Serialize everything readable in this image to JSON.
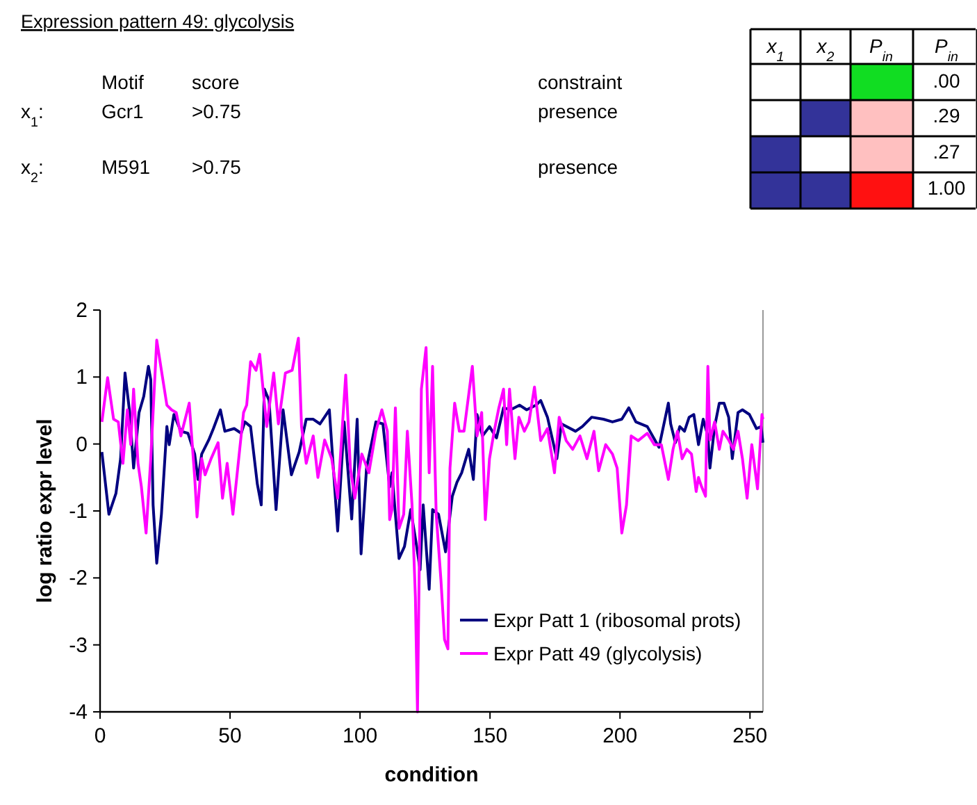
{
  "chart_data": [
    {
      "type": "other",
      "title": "Expression pattern 49: glycolysis",
      "annotations": [
        "Motif",
        "score",
        "constraint",
        "x$_{1}$:",
        "Gcr1",
        ">0.75",
        "presence",
        "x$_{2}$:",
        "M591",
        ">0.75",
        "presence",
        "x$_{1}$",
        "x$_{2}$",
        "P$_{in}$",
        "P$_{in}$",
        ".00",
        ".29",
        ".27",
        "1.00"
      ]
    },
    {
      "type": "line",
      "xlabel": "condition",
      "ylabel": "log ratio expr level",
      "xlim": [
        0,
        255
      ],
      "xticks": [
        0,
        50,
        100,
        150,
        200,
        250
      ],
      "ylim": [
        -4,
        2
      ],
      "yticks": [
        -4,
        -3,
        -2,
        -1,
        0,
        1,
        2
      ],
      "legend": "bottom right",
      "grid": false,
      "line_style": "solid",
      "series": [
        {
          "name": "Expr Patt 1 (ribosomal prots)",
          "color": "#000080",
          "x": [
            0.7,
            3.4,
            6.1,
            7.9,
            9.6,
            11.4,
            12.9,
            15.0,
            16.8,
            18.6,
            19.5,
            20.4,
            21.8,
            23.6,
            25.7,
            26.6,
            28.4,
            31.1,
            33.8,
            36.4,
            37.7,
            39.1,
            41.8,
            43.6,
            46.3,
            48.0,
            51.6,
            54.3,
            55.7,
            57.9,
            60.5,
            62.0,
            63.2,
            65.0,
            67.7,
            70.4,
            73.6,
            76.6,
            79.3,
            82.0,
            84.6,
            88.2,
            91.4,
            93.9,
            96.8,
            98.9,
            100.4,
            102.5,
            106.1,
            108.8,
            111.4,
            112.3,
            115.0,
            117.1,
            119.5,
            121.8,
            123.1,
            124.3,
            126.6,
            127.9,
            130.2,
            132.9,
            135.5,
            137.3,
            139.1,
            141.8,
            143.6,
            145.0,
            147.1,
            149.8,
            152.5,
            155.2,
            157.9,
            161.4,
            164.1,
            167.7,
            169.5,
            172.1,
            175.7,
            177.5,
            182.9,
            185.5,
            189.1,
            193.6,
            197.1,
            200.7,
            203.4,
            206.1,
            210.5,
            215.0,
            218.6,
            219.5,
            221.3,
            223.0,
            224.8,
            226.6,
            228.4,
            230.2,
            232.0,
            233.8,
            234.6,
            236.4,
            238.2,
            240.0,
            241.8,
            243.2,
            245.4,
            247.1,
            249.8,
            252.5,
            254.3,
            255.0
          ],
          "values": [
            -0.12,
            -1.05,
            -0.74,
            -0.22,
            1.06,
            0.47,
            -0.36,
            0.47,
            0.71,
            1.16,
            0.96,
            -0.91,
            -1.78,
            -1.05,
            0.26,
            -0.01,
            0.44,
            0.19,
            0.16,
            -0.15,
            -0.53,
            -0.15,
            0.06,
            0.23,
            0.51,
            0.19,
            0.23,
            0.16,
            0.33,
            0.26,
            -0.6,
            -0.91,
            0.82,
            0.65,
            -0.98,
            0.51,
            -0.46,
            -0.12,
            0.37,
            0.37,
            0.3,
            0.51,
            -1.3,
            0.33,
            -1.12,
            0.37,
            -1.64,
            -0.36,
            0.33,
            0.3,
            -0.64,
            -0.43,
            -1.71,
            -1.53,
            -0.98,
            -1.53,
            -1.88,
            -0.91,
            -2.17,
            -0.98,
            -1.05,
            -1.61,
            -0.78,
            -0.57,
            -0.43,
            -0.08,
            -0.53,
            0.44,
            0.12,
            0.26,
            0.09,
            0.54,
            0.51,
            0.58,
            0.51,
            0.58,
            0.65,
            0.4,
            -0.22,
            0.3,
            0.19,
            0.26,
            0.4,
            0.37,
            0.33,
            0.37,
            0.54,
            0.33,
            0.26,
            -0.05,
            0.61,
            0.3,
            0.02,
            0.26,
            0.19,
            0.4,
            0.44,
            -0.01,
            0.37,
            0.12,
            -0.36,
            0.26,
            0.61,
            0.61,
            0.4,
            -0.22,
            0.47,
            0.51,
            0.44,
            0.23,
            0.26,
            0.02
          ]
        },
        {
          "name": "Expr Patt 49 (glycolysis)",
          "color": "#ff00ff",
          "x": [
            0.7,
            2.9,
            5.2,
            7.0,
            8.8,
            10.5,
            11.8,
            12.9,
            14.6,
            15.9,
            17.7,
            19.5,
            21.8,
            23.6,
            25.7,
            27.5,
            29.3,
            31.1,
            34.3,
            36.4,
            37.3,
            39.1,
            40.4,
            42.7,
            45.4,
            47.1,
            48.9,
            51.1,
            52.5,
            55.2,
            56.4,
            57.9,
            60.0,
            61.4,
            64.1,
            66.8,
            68.6,
            71.3,
            73.9,
            76.3,
            77.5,
            79.3,
            82.0,
            83.8,
            86.4,
            89.1,
            91.4,
            94.5,
            96.3,
            98.0,
            100.7,
            103.4,
            106.1,
            108.4,
            110.5,
            111.4,
            112.3,
            113.6,
            115.0,
            116.8,
            118.2,
            120.0,
            121.3,
            122.1,
            123.6,
            125.4,
            126.6,
            127.9,
            129.3,
            131.1,
            132.5,
            133.8,
            134.6,
            136.4,
            138.2,
            140.0,
            143.2,
            145.0,
            146.8,
            148.2,
            149.8,
            151.6,
            153.4,
            155.2,
            156.4,
            157.5,
            159.6,
            161.1,
            163.2,
            165.0,
            167.1,
            169.5,
            172.1,
            174.8,
            176.6,
            179.3,
            181.8,
            184.6,
            187.3,
            190.0,
            191.8,
            194.5,
            197.1,
            198.9,
            200.7,
            202.5,
            204.3,
            207.0,
            210.5,
            213.2,
            215.9,
            218.6,
            220.4,
            222.1,
            223.9,
            225.7,
            227.5,
            229.3,
            230.2,
            231.4,
            232.9,
            233.8,
            234.6,
            236.4,
            238.2,
            239.6,
            241.8,
            243.6,
            245.4,
            247.1,
            248.9,
            250.7,
            252.9,
            254.6,
            255.0
          ],
          "values": [
            0.33,
            0.99,
            0.37,
            0.33,
            -0.29,
            0.51,
            -0.01,
            0.82,
            -0.29,
            -0.64,
            -1.33,
            -0.22,
            1.55,
            1.1,
            0.58,
            0.51,
            0.47,
            0.12,
            0.61,
            -0.5,
            -1.09,
            -0.22,
            -0.46,
            -0.22,
            0.02,
            -0.81,
            -0.29,
            -1.05,
            -0.53,
            0.47,
            0.58,
            1.23,
            1.1,
            1.34,
            0.26,
            1.06,
            0.3,
            1.06,
            1.1,
            1.58,
            0.26,
            -0.29,
            0.12,
            -0.5,
            0.06,
            -0.22,
            -0.81,
            1.03,
            -0.36,
            -0.81,
            -0.15,
            -0.43,
            0.19,
            0.51,
            0.19,
            -1.13,
            -0.98,
            0.54,
            -1.26,
            -1.05,
            0.19,
            -0.91,
            -2.29,
            -4.0,
            0.82,
            1.44,
            -0.43,
            1.16,
            -1.05,
            -2.02,
            -2.92,
            -3.06,
            -0.36,
            0.61,
            0.19,
            0.19,
            1.16,
            0.12,
            0.47,
            -1.13,
            -0.22,
            0.19,
            0.54,
            0.82,
            -0.01,
            0.82,
            -0.22,
            0.4,
            0.19,
            0.33,
            0.85,
            0.05,
            0.23,
            -0.43,
            0.4,
            0.05,
            -0.08,
            0.12,
            -0.22,
            0.19,
            -0.4,
            -0.01,
            -0.15,
            -0.36,
            -1.33,
            -0.91,
            0.12,
            0.05,
            0.16,
            -0.01,
            -0.01,
            -0.53,
            -0.08,
            0.19,
            -0.22,
            -0.08,
            -0.15,
            -0.71,
            -0.5,
            -0.64,
            -0.78,
            1.16,
            0.06,
            0.33,
            -0.08,
            0.19,
            0.06,
            -0.08,
            0.19,
            -0.22,
            -0.81,
            -0.01,
            -0.67,
            0.44,
            0.37
          ]
        }
      ]
    }
  ]
}
